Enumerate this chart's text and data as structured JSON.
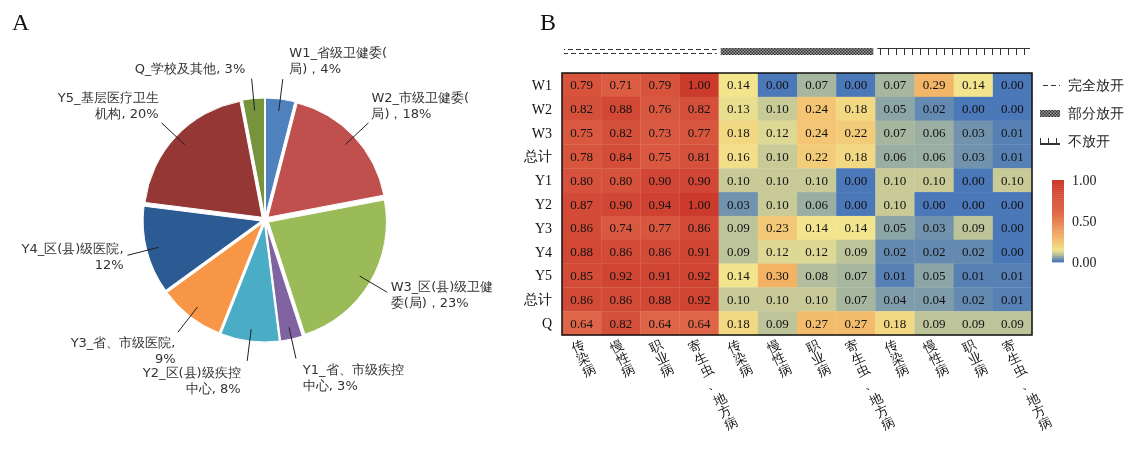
{
  "chart_data": [
    {
      "type": "pie",
      "title": "A",
      "categories": [
        "W1_省级卫健委(局)",
        "W2_市级卫健委(局)",
        "W3_区(县)级卫健委(局)",
        "Y1_省、市级疾控中心",
        "Y2_区(县)级疾控中心",
        "Y3_省、市级医院",
        "Y4_区(县)级医院",
        "Y5_基层医疗卫生机构",
        "Q_学校及其他"
      ],
      "values": [
        4,
        18,
        23,
        3,
        8,
        9,
        12,
        20,
        3
      ],
      "value_labels": [
        "，4%",
        "，18%",
        "，23%",
        ", 3%",
        ", 8%",
        ", 9%",
        ", 12%",
        ", 20%",
        ", 3%"
      ],
      "colors": [
        "#4f81bd",
        "#c0504d",
        "#9bbb59",
        "#8064a2",
        "#4bacc6",
        "#f79646",
        "#2c5a93",
        "#953735",
        "#77933c"
      ]
    },
    {
      "type": "heatmap",
      "title": "B",
      "categories": [
        "传染病",
        "慢性病",
        "职业病",
        "寄生虫、地方病",
        "传染病",
        "慢性病",
        "职业病",
        "寄生虫、地方病",
        "传染病",
        "慢性病",
        "职业病",
        "寄生虫、地方病"
      ],
      "y_categories": [
        "W1",
        "W2",
        "W3",
        "总计",
        "Y1",
        "Y2",
        "Y3",
        "Y4",
        "Y5",
        "总计",
        "Q"
      ],
      "cells": [
        [
          0.79,
          0.71,
          0.79,
          1.0,
          0.14,
          0.0,
          0.07,
          0.0,
          0.07,
          0.29,
          0.14,
          0.0
        ],
        [
          0.82,
          0.88,
          0.76,
          0.82,
          0.13,
          0.1,
          0.24,
          0.18,
          0.05,
          0.02,
          0.0,
          0.0
        ],
        [
          0.75,
          0.82,
          0.73,
          0.77,
          0.18,
          0.12,
          0.24,
          0.22,
          0.07,
          0.06,
          0.03,
          0.01
        ],
        [
          0.78,
          0.84,
          0.75,
          0.81,
          0.16,
          0.1,
          0.22,
          0.18,
          0.06,
          0.06,
          0.03,
          0.01
        ],
        [
          0.8,
          0.8,
          0.9,
          0.9,
          0.1,
          0.1,
          0.1,
          0.0,
          0.1,
          0.1,
          0.0,
          0.1
        ],
        [
          0.87,
          0.9,
          0.94,
          1.0,
          0.03,
          0.1,
          0.06,
          0.0,
          0.1,
          0.0,
          0.0,
          0.0
        ],
        [
          0.86,
          0.74,
          0.77,
          0.86,
          0.09,
          0.23,
          0.14,
          0.14,
          0.05,
          0.03,
          0.09,
          0.0
        ],
        [
          0.88,
          0.86,
          0.86,
          0.91,
          0.09,
          0.12,
          0.12,
          0.09,
          0.02,
          0.02,
          0.02,
          0.0
        ],
        [
          0.85,
          0.92,
          0.91,
          0.92,
          0.14,
          0.3,
          0.08,
          0.07,
          0.01,
          0.05,
          0.01,
          0.01
        ],
        [
          0.86,
          0.86,
          0.88,
          0.92,
          0.1,
          0.1,
          0.1,
          0.07,
          0.04,
          0.04,
          0.02,
          0.01
        ],
        [
          0.64,
          0.82,
          0.64,
          0.64,
          0.18,
          0.09,
          0.27,
          0.27,
          0.18,
          0.09,
          0.09,
          0.09
        ]
      ],
      "cell_labels": [
        [
          "0.79",
          "0.71",
          "0.79",
          "1.00",
          "0.14",
          "0.00",
          "0.07",
          "0.00",
          "0.07",
          "0.29",
          "0.14",
          "0.00"
        ],
        [
          "0.82",
          "0.88",
          "0.76",
          "0.82",
          "0.13",
          "0.10",
          "0.24",
          "0.18",
          "0.05",
          "0.02",
          "0.00",
          "0.00"
        ],
        [
          "0.75",
          "0.82",
          "0.73",
          "0.77",
          "0.18",
          "0.12",
          "0.24",
          "0.22",
          "0.07",
          "0.06",
          "0.03",
          "0.01"
        ],
        [
          "0.78",
          "0.84",
          "0.75",
          "0.81",
          "0.16",
          "0.10",
          "0.22",
          "0.18",
          "0.06",
          "0.06",
          "0.03",
          "0.01"
        ],
        [
          "0.80",
          "0.80",
          "0.90",
          "0.90",
          "0.10",
          "0.10",
          "0.10",
          "0.00",
          "0.10",
          "0.10",
          "0.00",
          "0.10"
        ],
        [
          "0.87",
          "0.90",
          "0.94",
          "1.00",
          "0.03",
          "0.10",
          "0.06",
          "0.00",
          "0.10",
          "0.00",
          "0.00",
          "0.00"
        ],
        [
          "0.86",
          "0.74",
          "0.77",
          "0.86",
          "0.09",
          "0.23",
          "0.14",
          "0.14",
          "0.05",
          "0.03",
          "0.09",
          "0.00"
        ],
        [
          "0.88",
          "0.86",
          "0.86",
          "0.91",
          "0.09",
          "0.12",
          "0.12",
          "0.09",
          "0.02",
          "0.02",
          "0.02",
          "0.00"
        ],
        [
          "0.85",
          "0.92",
          "0.91",
          "0.92",
          "0.14",
          "0.30",
          "0.08",
          "0.07",
          "0.01",
          "0.05",
          "0.01",
          "0.01"
        ],
        [
          "0.86",
          "0.86",
          "0.88",
          "0.92",
          "0.10",
          "0.10",
          "0.10",
          "0.07",
          "0.04",
          "0.04",
          "0.02",
          "0.01"
        ],
        [
          "0.64",
          "0.82",
          "0.64",
          "0.64",
          "0.18",
          "0.09",
          "0.27",
          "0.27",
          "0.18",
          "0.09",
          "0.09",
          "0.09"
        ]
      ],
      "clim": [
        0,
        1
      ],
      "cticks": [
        {
          "value": 0,
          "label": "0.00"
        },
        {
          "value": 0.5,
          "label": "0.50"
        },
        {
          "value": 1,
          "label": "1.00"
        }
      ],
      "annotations": [
        "完全放开",
        "部分放开",
        "不放开"
      ]
    }
  ]
}
